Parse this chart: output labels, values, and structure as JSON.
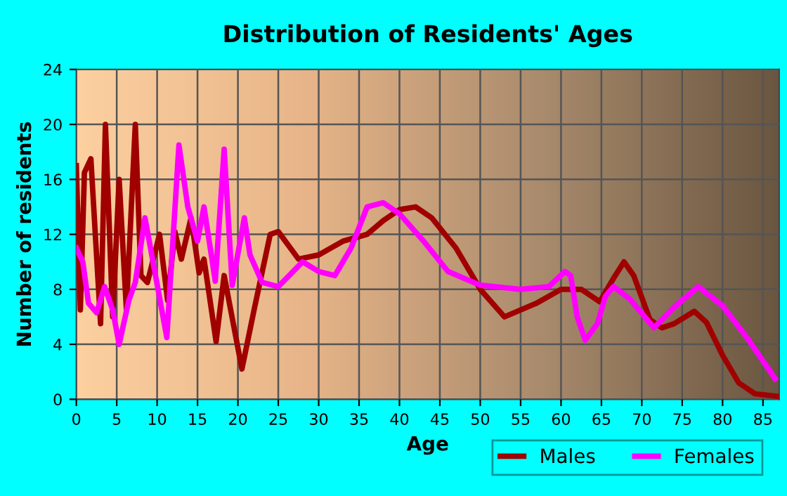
{
  "chart_data": {
    "type": "line",
    "title": "Distribution of Residents' Ages",
    "xlabel": "Age",
    "ylabel": "Number of residents",
    "xlim": [
      0,
      87
    ],
    "xticks": [
      0,
      5,
      10,
      15,
      20,
      25,
      30,
      35,
      40,
      45,
      50,
      55,
      60,
      65,
      70,
      75,
      80,
      85
    ],
    "ylim": [
      0,
      24
    ],
    "yticks": [
      0,
      4,
      8,
      12,
      16,
      20,
      24
    ],
    "grid": true,
    "legend": "bottom right",
    "marker": "none",
    "line_style": "solid",
    "series": [
      {
        "name": "Males",
        "color": "#a00000",
        "x": [
          0,
          0.5,
          1,
          1.8,
          3,
          3.6,
          4.5,
          5.3,
          6.2,
          7.3,
          8,
          8.8,
          10.3,
          11.3,
          12.2,
          13,
          14.2,
          15.2,
          15.8,
          17.3,
          18.3,
          20.5,
          22,
          24,
          25,
          27.5,
          30,
          33,
          36,
          38,
          40,
          42,
          44,
          47,
          50,
          53,
          57,
          60,
          62.5,
          64.8,
          66.5,
          67.8,
          69,
          71,
          72.5,
          74,
          76.5,
          78,
          80,
          82,
          84,
          87
        ],
        "values": [
          17,
          6.5,
          16.5,
          17.5,
          5.5,
          20,
          6,
          16,
          6.5,
          20,
          9,
          8.5,
          12,
          7.2,
          12.2,
          10.2,
          13.2,
          9.2,
          10.2,
          4.2,
          9,
          2.2,
          6.5,
          12,
          12.2,
          10.2,
          10.5,
          11.5,
          12,
          13,
          13.8,
          14,
          13.2,
          11,
          8,
          6,
          7,
          8,
          8,
          7.1,
          8.8,
          10,
          9,
          5.8,
          5.2,
          5.5,
          6.4,
          5.6,
          3.2,
          1.2,
          0.4,
          0.2
        ]
      },
      {
        "name": "Females",
        "color": "#ff00ff",
        "x": [
          0,
          0.8,
          1.5,
          2.5,
          3.5,
          4.5,
          5.3,
          6.5,
          7.3,
          8.5,
          9.8,
          11.2,
          12.7,
          13.8,
          15,
          15.8,
          17.2,
          18.3,
          19.3,
          20.8,
          21.5,
          23,
          25,
          28,
          30,
          32,
          34,
          36,
          38,
          40,
          43,
          46,
          50,
          55,
          58.5,
          60.5,
          61.2,
          62,
          63,
          64.5,
          65.5,
          66.5,
          68.5,
          71.5,
          74,
          77,
          80,
          83,
          86.5
        ],
        "values": [
          11,
          10,
          7,
          6.3,
          8.2,
          6.5,
          4,
          7.2,
          8.5,
          13.2,
          9,
          4.5,
          18.5,
          14,
          11.5,
          14,
          8.6,
          18.2,
          8.3,
          13.2,
          10.5,
          8.5,
          8.2,
          10,
          9.3,
          9,
          11,
          14,
          14.3,
          13.5,
          11.5,
          9.3,
          8.3,
          8,
          8.2,
          9.3,
          9,
          6,
          4.3,
          5.5,
          7.5,
          8.2,
          7.3,
          5.2,
          6.7,
          8.2,
          6.8,
          4.5,
          1.5
        ]
      }
    ]
  }
}
